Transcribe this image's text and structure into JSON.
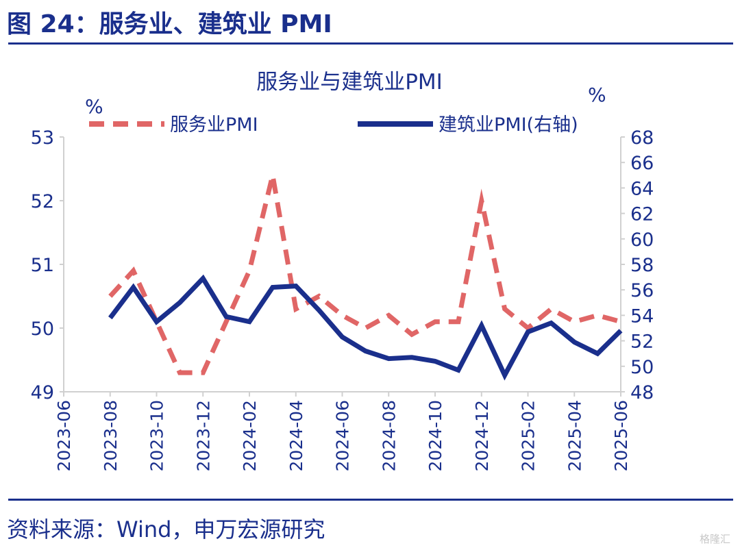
{
  "figure": {
    "title": "图 24：服务业、建筑业 PMI",
    "source": "资料来源：Wind，申万宏源研究",
    "watermark": "格隆汇"
  },
  "chart_data": {
    "type": "line",
    "title": "服务业与建筑业PMI",
    "y_left_unit": "%",
    "y_right_unit": "%",
    "ylim_left": [
      49,
      53
    ],
    "ylim_right": [
      48,
      68
    ],
    "yticks_left": [
      49,
      50,
      51,
      52,
      53
    ],
    "yticks_right": [
      48,
      50,
      52,
      54,
      56,
      58,
      60,
      62,
      64,
      66,
      68
    ],
    "x_ticks": [
      "2023-06",
      "2023-08",
      "2023-10",
      "2023-12",
      "2024-02",
      "2024-04",
      "2024-06",
      "2024-08",
      "2024-10",
      "2024-12",
      "2025-02",
      "2025-04",
      "2025-06"
    ],
    "legend_position": "top",
    "grid": false,
    "x": [
      "2023-08",
      "2023-09",
      "2023-10",
      "2023-11",
      "2023-12",
      "2024-01",
      "2024-02",
      "2024-03",
      "2024-04",
      "2024-05",
      "2024-06",
      "2024-07",
      "2024-08",
      "2024-09",
      "2024-10",
      "2024-11",
      "2024-12",
      "2025-01",
      "2025-02",
      "2025-03",
      "2025-04",
      "2025-05",
      "2025-06"
    ],
    "series": [
      {
        "name": "服务业PMI",
        "axis": "left",
        "style": "dashed",
        "color": "#e06666",
        "values": [
          50.5,
          50.9,
          50.1,
          49.3,
          49.3,
          50.1,
          50.9,
          52.4,
          50.3,
          50.5,
          50.2,
          50.0,
          50.2,
          49.9,
          50.1,
          50.1,
          52.0,
          50.3,
          50.0,
          50.3,
          50.1,
          50.2,
          50.1
        ]
      },
      {
        "name": "建筑业PMI(右轴)",
        "axis": "right",
        "style": "solid",
        "color": "#1a2f8c",
        "values": [
          53.8,
          56.2,
          53.5,
          55.0,
          56.9,
          53.9,
          53.5,
          56.2,
          56.3,
          54.4,
          52.3,
          51.2,
          50.6,
          50.7,
          50.4,
          49.7,
          53.2,
          49.3,
          52.7,
          53.4,
          51.9,
          51.0,
          52.8
        ]
      }
    ]
  }
}
